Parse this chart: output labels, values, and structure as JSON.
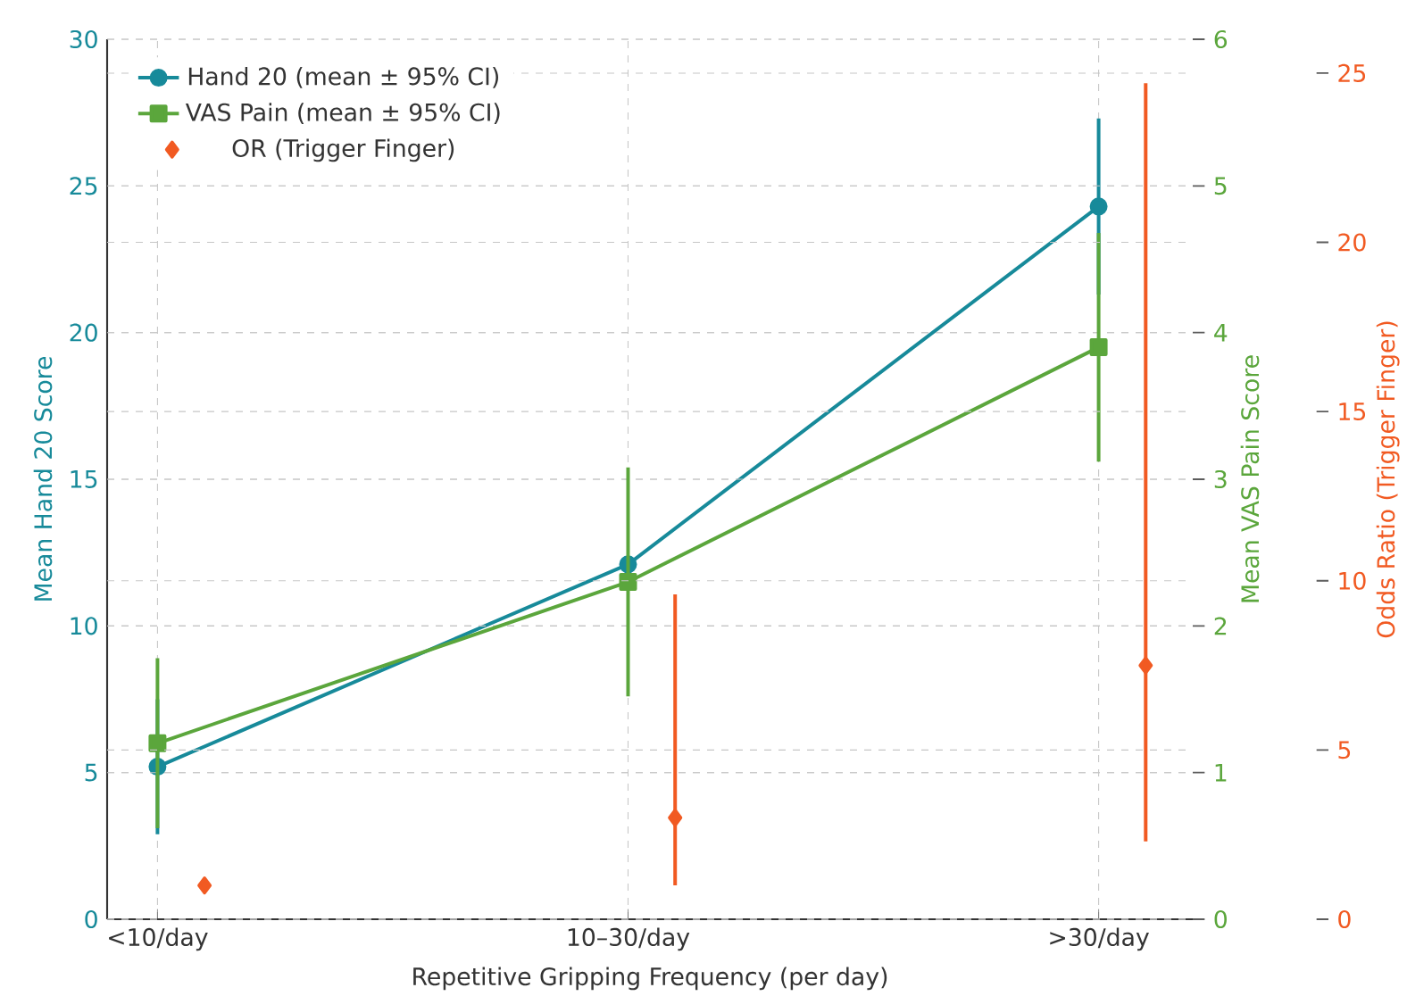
{
  "chart_data": {
    "type": "line",
    "xlabel": "Repetitive Gripping Frequency (per day)",
    "ylabel": "Mean Hand 20 Score",
    "y2label": "Mean VAS Pain Score",
    "y3label": "Odds Ratio (Trigger Finger)",
    "categories": [
      "<10/day",
      "10–30/day",
      ">30/day"
    ],
    "ylim": [
      0,
      30
    ],
    "yticks": [
      0,
      5,
      10,
      15,
      20,
      25,
      30
    ],
    "y2lim": [
      0,
      6
    ],
    "y2ticks": [
      0,
      1,
      2,
      3,
      4,
      5,
      6
    ],
    "y3lim": [
      0,
      26
    ],
    "y3ticks": [
      0,
      5,
      10,
      15,
      20,
      25
    ],
    "grid": true,
    "legend": "top left",
    "line_style": "solid",
    "series": [
      {
        "name": "Hand 20 (mean ± 95% CI)",
        "color": "#178a9a",
        "marker": "circle",
        "values": [
          5.2,
          12.1,
          24.3
        ],
        "errors": [
          2.3,
          null,
          3.0
        ]
      },
      {
        "name": "VAS Pain (mean ± 95% CI)",
        "axis": "y2",
        "color": "#5ba63c",
        "marker": "square",
        "values": [
          1.2,
          2.3,
          3.9
        ],
        "errors": [
          0.58,
          0.78,
          0.78
        ]
      },
      {
        "name": "OR (Trigger Finger)",
        "type": "scatter",
        "axis": "y3",
        "color": "#f15a22",
        "marker": "diamond",
        "values": [
          1.0,
          3.0,
          7.5
        ],
        "errors": [
          null,
          [
            1.0,
            9.6
          ],
          [
            2.3,
            24.7
          ]
        ]
      }
    ]
  }
}
